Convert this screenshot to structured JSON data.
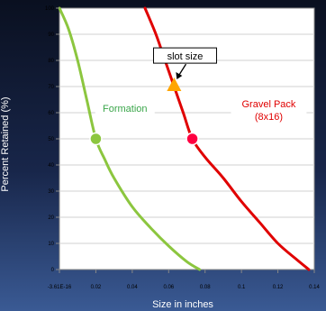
{
  "chart_data": {
    "type": "line",
    "xlabel": "Size in inches",
    "ylabel": "Percent Retained (%)",
    "xlim": [
      0,
      0.14
    ],
    "ylim": [
      0,
      100
    ],
    "x_ticks": [
      {
        "value": 0,
        "label": "-3.61E-16"
      },
      {
        "value": 0.02,
        "label": "0.02"
      },
      {
        "value": 0.04,
        "label": "0.04"
      },
      {
        "value": 0.06,
        "label": "0.06"
      },
      {
        "value": 0.08,
        "label": "0.08"
      },
      {
        "value": 0.1,
        "label": "0.1"
      },
      {
        "value": 0.12,
        "label": "0.12"
      },
      {
        "value": 0.14,
        "label": "0.14"
      }
    ],
    "y_ticks": [
      0,
      10,
      20,
      30,
      40,
      50,
      60,
      70,
      80,
      90,
      100
    ],
    "grid": "horizontal",
    "series": [
      {
        "name": "Formation",
        "color": "#8cc63f",
        "label_color": "#3aa64a",
        "points": [
          [
            0,
            100
          ],
          [
            0.005,
            92
          ],
          [
            0.01,
            80
          ],
          [
            0.015,
            65
          ],
          [
            0.02,
            50
          ],
          [
            0.025,
            42
          ],
          [
            0.03,
            35
          ],
          [
            0.04,
            24
          ],
          [
            0.05,
            16
          ],
          [
            0.06,
            9
          ],
          [
            0.07,
            3
          ],
          [
            0.077,
            0
          ]
        ],
        "marker": {
          "x": 0.02,
          "y": 50,
          "color": "#8cc63f"
        }
      },
      {
        "name": "Gravel Pack\n(8x16)",
        "color": "#e00000",
        "label_color": "#e00000",
        "points": [
          [
            0.047,
            100
          ],
          [
            0.053,
            90
          ],
          [
            0.058,
            80
          ],
          [
            0.063,
            70
          ],
          [
            0.068,
            60
          ],
          [
            0.073,
            50
          ],
          [
            0.08,
            43
          ],
          [
            0.09,
            35
          ],
          [
            0.1,
            26
          ],
          [
            0.11,
            18
          ],
          [
            0.12,
            10
          ],
          [
            0.13,
            4
          ],
          [
            0.137,
            0
          ]
        ],
        "marker": {
          "x": 0.073,
          "y": 50,
          "color": "#ff0040"
        }
      }
    ],
    "annotations": [
      {
        "text": "slot size",
        "x": 0.063,
        "y": 70,
        "marker": "triangle",
        "marker_color": "#ffa500"
      }
    ]
  }
}
